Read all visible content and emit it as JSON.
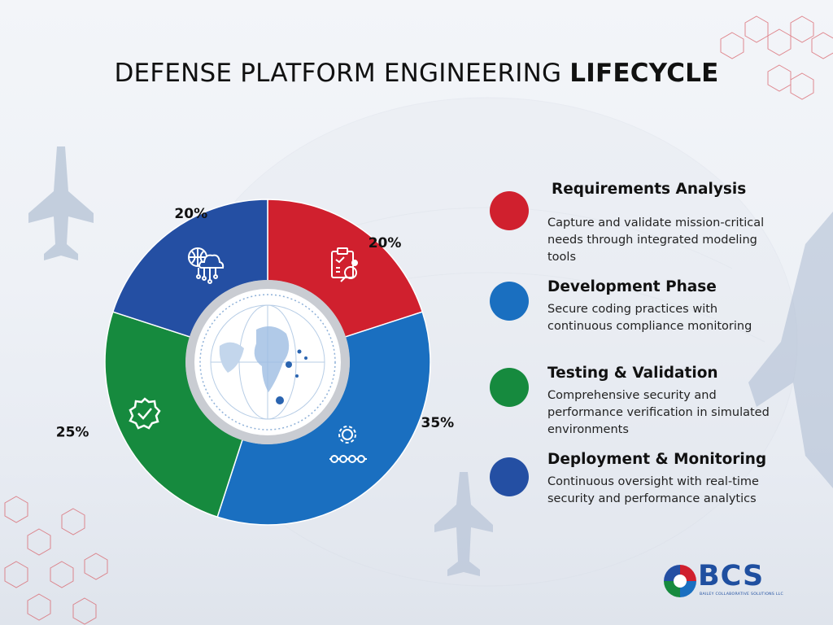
{
  "title": {
    "regular": "DEFENSE PLATFORM ENGINEERING",
    "bold": "LIFECYCLE"
  },
  "chart_data": {
    "type": "pie",
    "variant": "donut",
    "categories": [
      "Requirements Analysis",
      "Development Phase",
      "Testing & Validation",
      "Deployment & Monitoring"
    ],
    "values": [
      20,
      35,
      25,
      20
    ],
    "labels": [
      "20%",
      "35%",
      "25%",
      "20%"
    ],
    "colors": [
      "#d0202e",
      "#1a6fc0",
      "#168a3e",
      "#244fa3"
    ],
    "icons": [
      "clipboard-search-icon",
      "gear-process-icon",
      "shield-check-icon",
      "cloud-network-icon"
    ],
    "start": "12 o'clock",
    "direction": "clockwise",
    "legend_position": "right"
  },
  "legend": {
    "items": [
      {
        "title": "Requirements Analysis",
        "description": "Capture and validate mission-critical needs through integrated modeling tools",
        "color": "#d0202e"
      },
      {
        "title": "Development Phase",
        "description": "Secure coding practices with continuous compliance monitoring",
        "color": "#1a6fc0"
      },
      {
        "title": "Testing & Validation",
        "description": "Comprehensive security and performance verification in simulated environments",
        "color": "#168a3e"
      },
      {
        "title": "Deployment & Monitoring",
        "description": "Continuous oversight with real-time security and performance analytics",
        "color": "#244fa3"
      }
    ]
  },
  "logo": {
    "name": "BCS",
    "subtitle": "BAILEY COLLABORATIVE SOLUTIONS LLC",
    "icon": "bcs-swirl-logo-icon"
  },
  "decor": {
    "background_icons": [
      "fighter-jet-icon",
      "hexagon-network-icon",
      "globe-icon"
    ]
  }
}
